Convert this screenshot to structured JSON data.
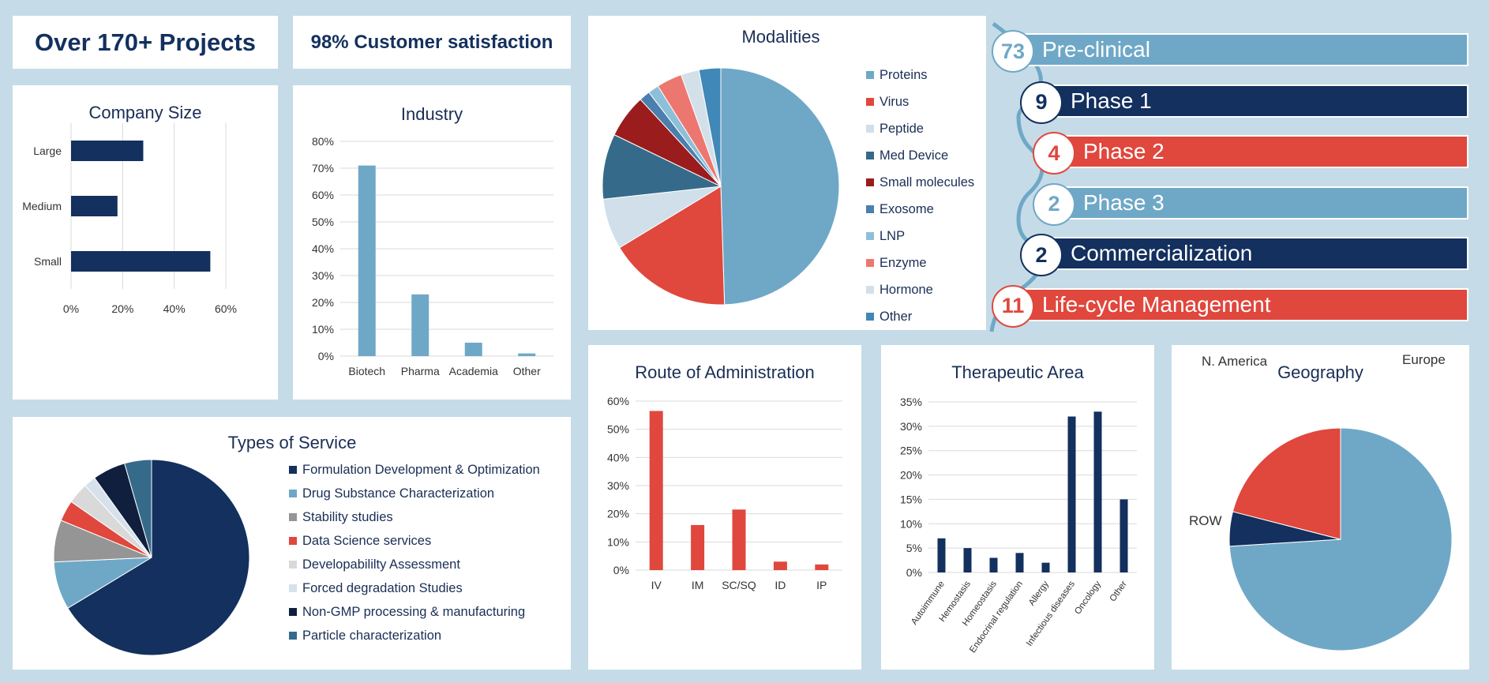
{
  "kpis": {
    "projects": "Over 170+ Projects",
    "satisfaction": "98% Customer satisfaction"
  },
  "colors": {
    "navy": "#13305e",
    "light_blue": "#6fa8c7",
    "red": "#e0473d",
    "background": "#c5dbe7"
  },
  "pipeline": [
    {
      "count": "73",
      "label": "Pre-clinical",
      "color": "#6fa8c7"
    },
    {
      "count": "9",
      "label": "Phase 1",
      "color": "#13305e"
    },
    {
      "count": "4",
      "label": "Phase 2",
      "color": "#e0473d"
    },
    {
      "count": "2",
      "label": "Phase 3",
      "color": "#6fa8c7"
    },
    {
      "count": "2",
      "label": "Commercialization",
      "color": "#13305e"
    },
    {
      "count": "11",
      "label": "Life-cycle Management",
      "color": "#e0473d"
    }
  ],
  "chart_data": [
    {
      "id": "company_size",
      "type": "bar",
      "orientation": "horizontal",
      "title": "Company Size",
      "categories": [
        "Large",
        "Medium",
        "Small"
      ],
      "values": [
        28,
        18,
        54
      ],
      "xlim": [
        0,
        60
      ],
      "ticks": [
        0,
        20,
        40,
        60
      ],
      "tick_labels": [
        "0%",
        "20%",
        "40%",
        "60%"
      ],
      "color": "#13305e",
      "grid": true
    },
    {
      "id": "industry",
      "type": "bar",
      "title": "Industry",
      "categories": [
        "Biotech",
        "Pharma",
        "Academia",
        "Other"
      ],
      "values": [
        71,
        23,
        5,
        1
      ],
      "ylim": [
        0,
        80
      ],
      "ticks": [
        0,
        10,
        20,
        30,
        40,
        50,
        60,
        70,
        80
      ],
      "tick_labels": [
        "0%",
        "10%",
        "20%",
        "30%",
        "40%",
        "50%",
        "60%",
        "70%",
        "80%"
      ],
      "color": "#6fa8c7",
      "grid": true
    },
    {
      "id": "modalities",
      "type": "pie",
      "title": "Modalities",
      "legend_position": "right",
      "labels": [
        "Proteins",
        "Virus",
        "Peptide",
        "Med Device",
        "Small molecules",
        "Exosome",
        "LNP",
        "Enzyme",
        "Hormone",
        "Other"
      ],
      "values": [
        50,
        17,
        7,
        9,
        6,
        1.5,
        1.5,
        3.5,
        2.5,
        3
      ],
      "colors": [
        "#6fa8c7",
        "#e0473d",
        "#d0dfea",
        "#356a8a",
        "#9b1c1c",
        "#4a7fae",
        "#8ebfd9",
        "#ec7770",
        "#d3e0ea",
        "#3f88b8"
      ]
    },
    {
      "id": "types_of_service",
      "type": "pie",
      "title": "Types of Service",
      "legend_position": "right",
      "labels": [
        "Formulation Development & Optimization",
        "Drug Substance Characterization",
        "Stability studies",
        "Data Science services",
        "Developabililty Assessment",
        "Forced degradation Studies",
        "Non-GMP processing & manufacturing",
        "Particle characterization"
      ],
      "values": [
        67,
        8,
        7,
        3.5,
        3.5,
        2,
        5.5,
        4.5
      ],
      "colors": [
        "#13305e",
        "#6fa8c7",
        "#959595",
        "#e0473d",
        "#d9d9d9",
        "#d6e1ec",
        "#0f1f3d",
        "#356a8a"
      ]
    },
    {
      "id": "route_of_administration",
      "type": "bar",
      "title": "Route of Administration",
      "categories": [
        "IV",
        "IM",
        "SC/SQ",
        "ID",
        "IP"
      ],
      "values": [
        56.5,
        16,
        21.5,
        3,
        2
      ],
      "ylim": [
        0,
        60
      ],
      "ticks": [
        0,
        10,
        20,
        30,
        40,
        50,
        60
      ],
      "tick_labels": [
        "0%",
        "10%",
        "20%",
        "30%",
        "40%",
        "50%",
        "60%"
      ],
      "color": "#e0473d",
      "grid": true
    },
    {
      "id": "therapeutic_area",
      "type": "bar",
      "title": "Therapeutic Area",
      "categories": [
        "Autoimmune",
        "Hemostasis",
        "Homeostasis",
        "Endocrinal regulation",
        "Allergy",
        "Infectious diseases",
        "Oncology",
        "Other"
      ],
      "values": [
        7,
        5,
        3,
        4,
        2,
        32,
        33,
        15
      ],
      "ylim": [
        0,
        35
      ],
      "ticks": [
        0,
        5,
        10,
        15,
        20,
        25,
        30,
        35
      ],
      "tick_labels": [
        "0%",
        "5%",
        "10%",
        "15%",
        "20%",
        "25%",
        "30%",
        "35%"
      ],
      "color": "#13305e",
      "grid": true
    },
    {
      "id": "geography",
      "type": "pie",
      "title": "Geography",
      "labels": [
        "Europe",
        "ROW",
        "N. America"
      ],
      "values": [
        74,
        5,
        21
      ],
      "colors": [
        "#6fa8c7",
        "#13305e",
        "#e0473d"
      ]
    }
  ]
}
